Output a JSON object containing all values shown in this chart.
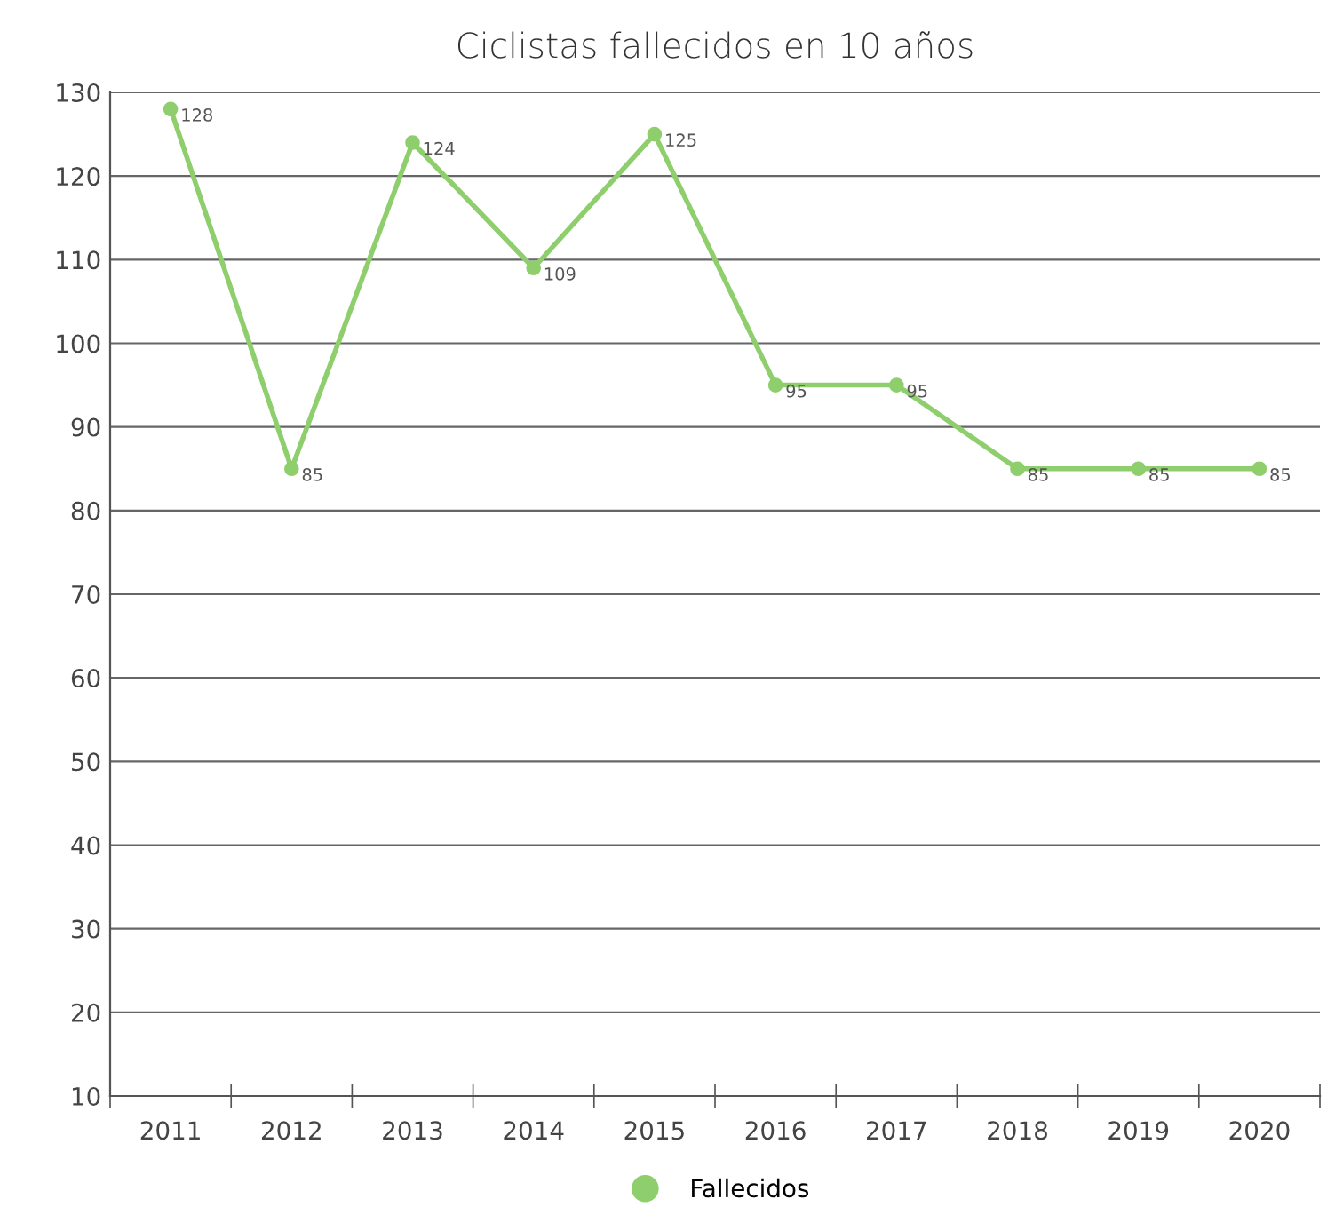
{
  "chart_data": {
    "type": "line",
    "title": "Ciclistas fallecidos en 10 años",
    "categories": [
      "2011",
      "2012",
      "2013",
      "2014",
      "2015",
      "2016",
      "2017",
      "2018",
      "2019",
      "2020"
    ],
    "series": [
      {
        "name": "Fallecidos",
        "color": "#8fce6c",
        "values": [
          128,
          85,
          124,
          109,
          125,
          95,
          95,
          85,
          85,
          85
        ]
      }
    ],
    "ylim": [
      10,
      130
    ],
    "yticks": [
      10,
      20,
      30,
      40,
      50,
      60,
      70,
      80,
      90,
      100,
      110,
      120,
      130
    ],
    "grid": "y",
    "legend": "bottom",
    "marker": "circle",
    "line_style": "solid",
    "data_labels": true
  }
}
